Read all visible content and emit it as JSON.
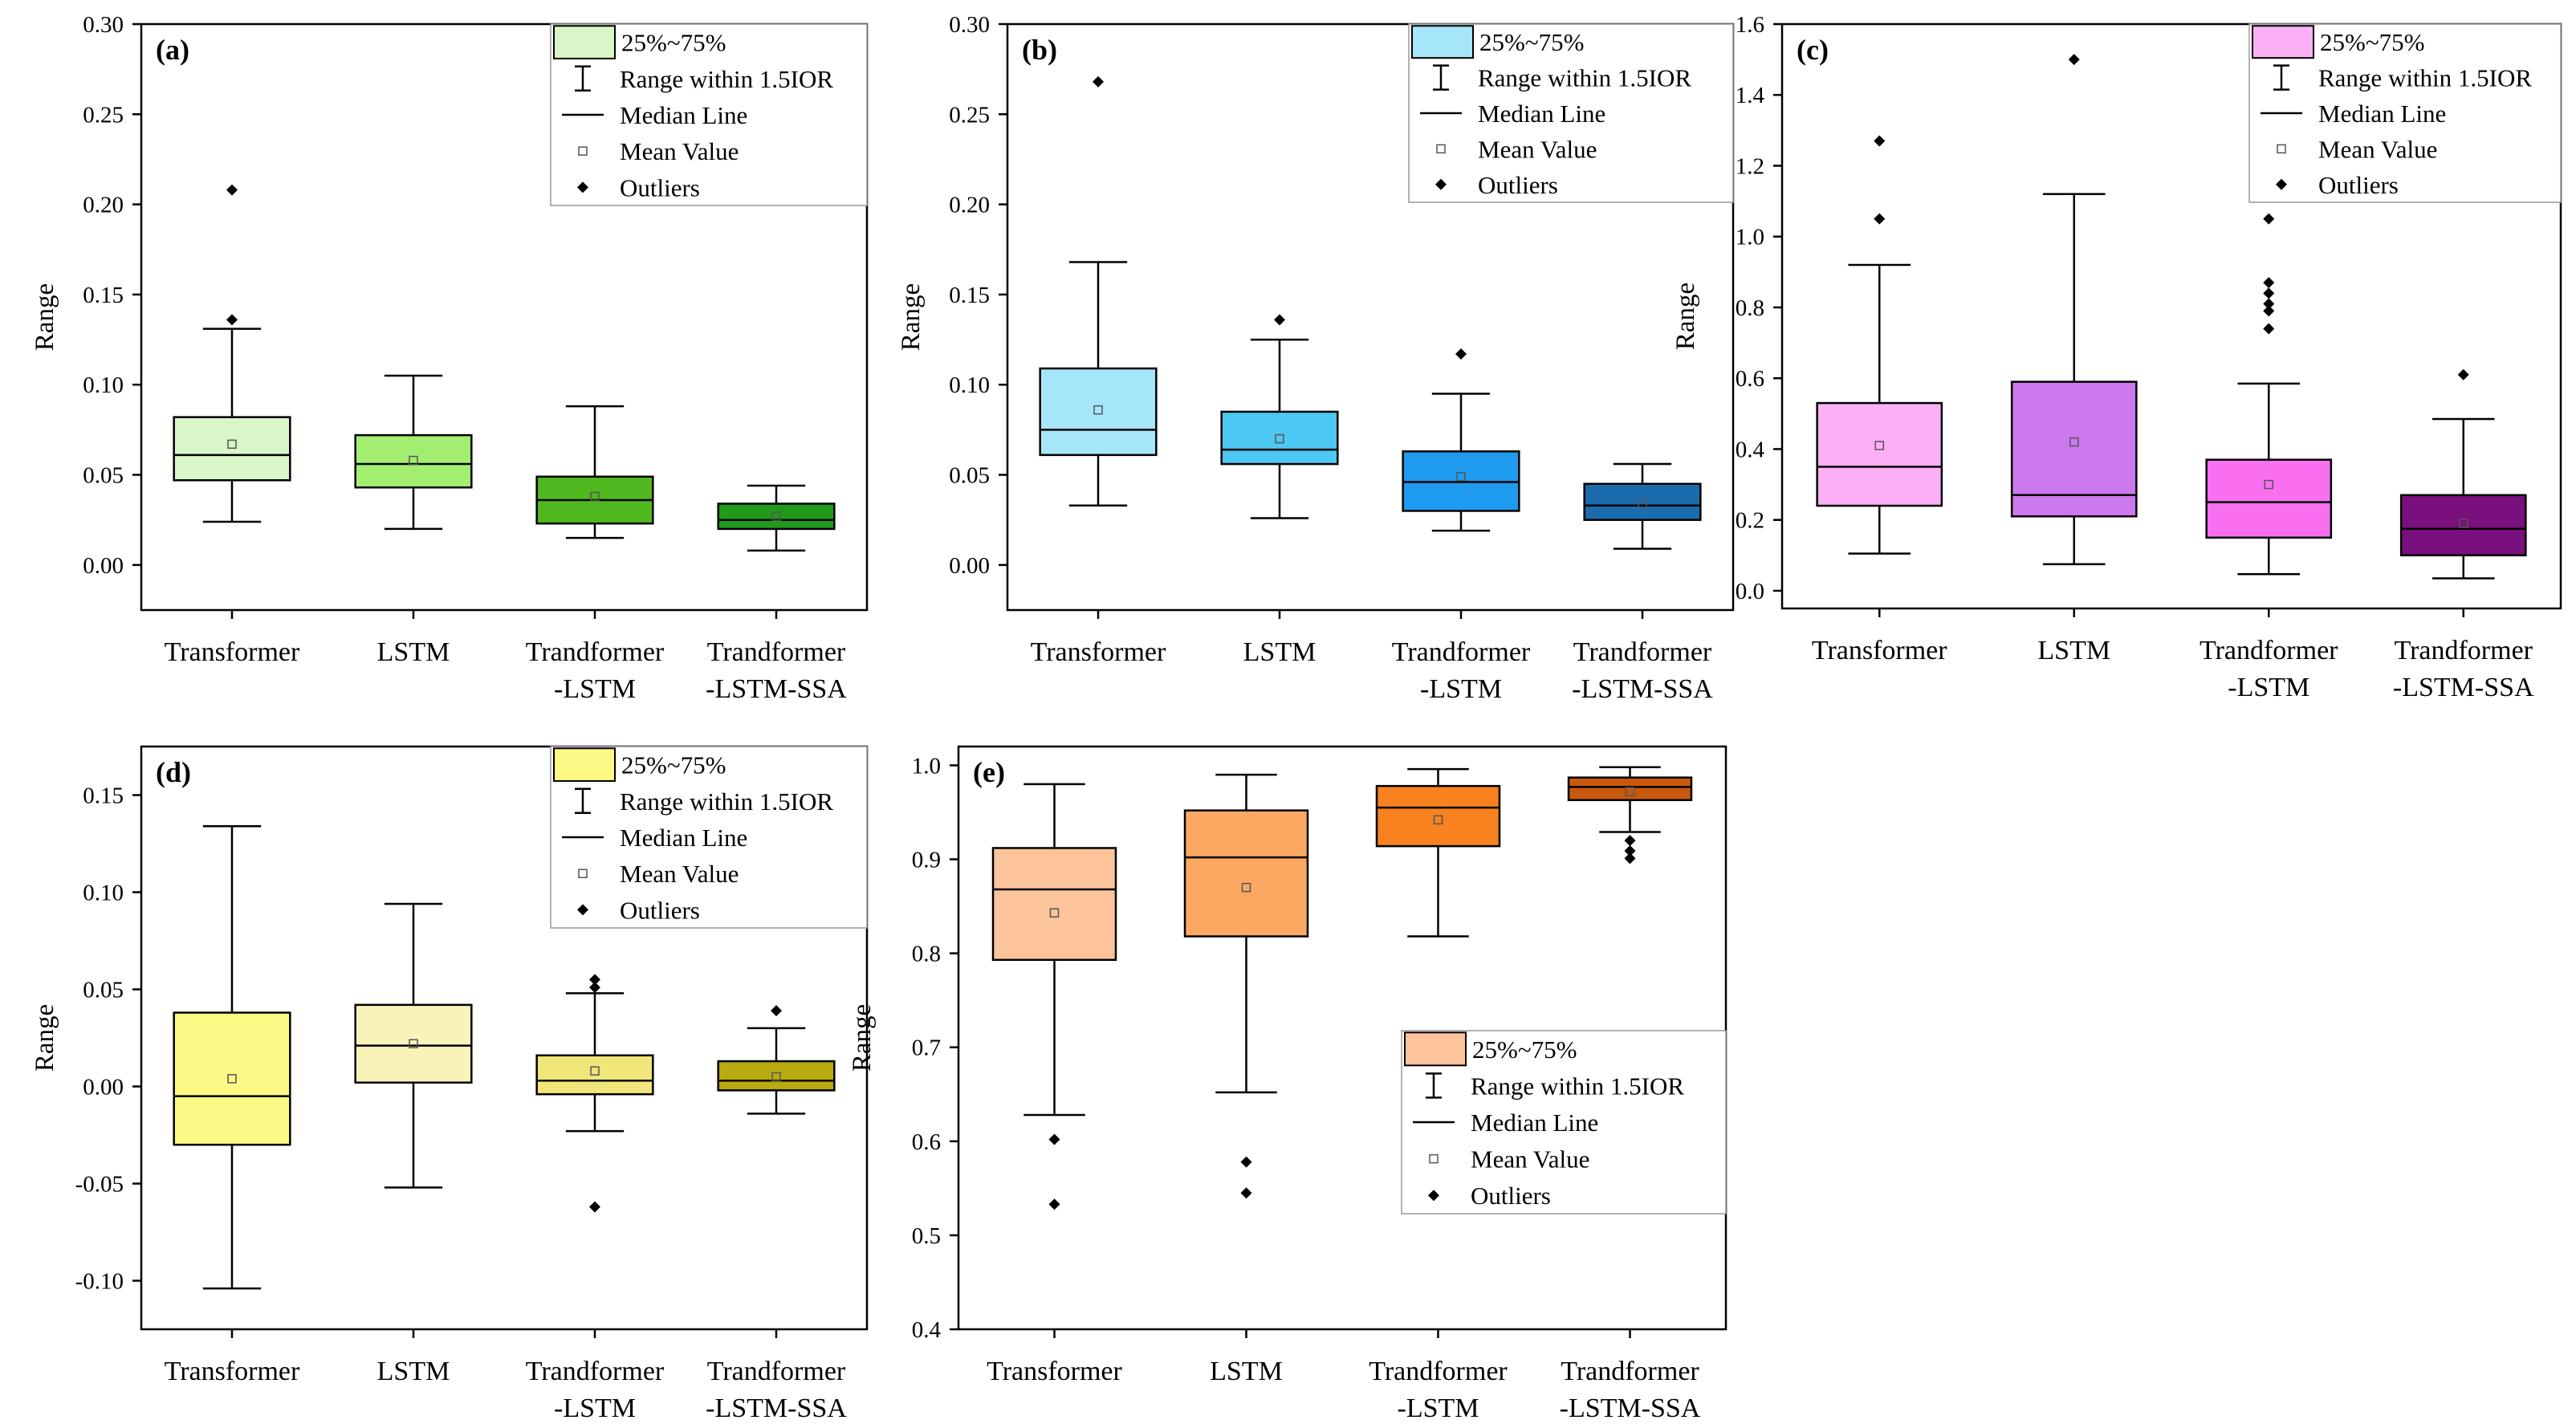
{
  "figure": {
    "type": "boxplot-grid",
    "legend_entries": [
      "25%~75%",
      "Range within 1.5IOR",
      "Median Line",
      "Mean Value",
      "Outliers"
    ],
    "categories": [
      "Transformer",
      "LSTM",
      "Trandformer\n-LSTM",
      "Trandformer\n-LSTM-SSA"
    ]
  },
  "chart_data": [
    {
      "type": "box",
      "title": "(a)",
      "ylabel": "Range",
      "ylim": [
        -0.025,
        0.3
      ],
      "yticks": [
        0.0,
        0.05,
        0.1,
        0.15,
        0.2,
        0.25,
        0.3
      ],
      "ytick_labels": [
        "0.00",
        "0.05",
        "0.10",
        "0.15",
        "0.20",
        "0.25",
        "0.30"
      ],
      "legend": [
        "25%~75%",
        "Range within 1.5IOR",
        "Median Line",
        "Mean Value",
        "Outliers"
      ],
      "legend_position": "top-right",
      "categories": [
        "Transformer",
        "LSTM",
        "Trandformer\n-LSTM",
        "Trandformer\n-LSTM-SSA"
      ],
      "boxes": [
        {
          "q1": 0.047,
          "median": 0.061,
          "q3": 0.082,
          "mean": 0.067,
          "whisker_low": 0.024,
          "whisker_high": 0.131,
          "outliers": [
            0.136,
            0.208
          ],
          "color": "#d9f6c8"
        },
        {
          "q1": 0.043,
          "median": 0.056,
          "q3": 0.072,
          "mean": 0.058,
          "whisker_low": 0.02,
          "whisker_high": 0.105,
          "outliers": [],
          "color": "#a3ee70"
        },
        {
          "q1": 0.023,
          "median": 0.036,
          "q3": 0.049,
          "mean": 0.038,
          "whisker_low": 0.015,
          "whisker_high": 0.088,
          "outliers": [],
          "color": "#4fb81e"
        },
        {
          "q1": 0.02,
          "median": 0.025,
          "q3": 0.034,
          "mean": 0.027,
          "whisker_low": 0.008,
          "whisker_high": 0.044,
          "outliers": [],
          "color": "#1f9a1a"
        }
      ]
    },
    {
      "type": "box",
      "title": "(b)",
      "ylabel": "Range",
      "ylim": [
        -0.025,
        0.3
      ],
      "yticks": [
        0.0,
        0.05,
        0.1,
        0.15,
        0.2,
        0.25,
        0.3
      ],
      "ytick_labels": [
        "0.00",
        "0.05",
        "0.10",
        "0.15",
        "0.20",
        "0.25",
        "0.30"
      ],
      "legend": [
        "25%~75%",
        "Range within 1.5IOR",
        "Median Line",
        "Mean Value",
        "Outliers"
      ],
      "legend_position": "top-right",
      "categories": [
        "Transformer",
        "LSTM",
        "Trandformer\n-LSTM",
        "Trandformer\n-LSTM-SSA"
      ],
      "boxes": [
        {
          "q1": 0.061,
          "median": 0.075,
          "q3": 0.109,
          "mean": 0.086,
          "whisker_low": 0.033,
          "whisker_high": 0.168,
          "outliers": [
            0.268
          ],
          "color": "#a6e6fb"
        },
        {
          "q1": 0.056,
          "median": 0.064,
          "q3": 0.085,
          "mean": 0.07,
          "whisker_low": 0.026,
          "whisker_high": 0.125,
          "outliers": [
            0.136
          ],
          "color": "#4cc8f2"
        },
        {
          "q1": 0.03,
          "median": 0.046,
          "q3": 0.063,
          "mean": 0.049,
          "whisker_low": 0.019,
          "whisker_high": 0.095,
          "outliers": [
            0.117
          ],
          "color": "#1e9bee"
        },
        {
          "q1": 0.025,
          "median": 0.033,
          "q3": 0.045,
          "mean": 0.034,
          "whisker_low": 0.009,
          "whisker_high": 0.056,
          "outliers": [],
          "color": "#1b6cad"
        }
      ]
    },
    {
      "type": "box",
      "title": "(c)",
      "ylabel": "Range",
      "ylim": [
        -0.05,
        1.6
      ],
      "yticks": [
        0.0,
        0.2,
        0.4,
        0.6,
        0.8,
        1.0,
        1.2,
        1.4,
        1.6
      ],
      "ytick_labels": [
        "0.0",
        "0.2",
        "0.4",
        "0.6",
        "0.8",
        "1.0",
        "1.2",
        "1.4",
        "1.6"
      ],
      "legend": [
        "25%~75%",
        "Range within 1.5IOR",
        "Median Line",
        "Mean Value",
        "Outliers"
      ],
      "legend_position": "top-right",
      "categories": [
        "Transformer",
        "LSTM",
        "Trandformer\n-LSTM",
        "Trandformer\n-LSTM-SSA"
      ],
      "boxes": [
        {
          "q1": 0.24,
          "median": 0.35,
          "q3": 0.53,
          "mean": 0.41,
          "whisker_low": 0.105,
          "whisker_high": 0.92,
          "outliers": [
            1.05,
            1.27
          ],
          "color": "#fbb0f6"
        },
        {
          "q1": 0.21,
          "median": 0.27,
          "q3": 0.59,
          "mean": 0.42,
          "whisker_low": 0.075,
          "whisker_high": 1.12,
          "outliers": [
            1.5
          ],
          "color": "#cc78ee"
        },
        {
          "q1": 0.15,
          "median": 0.25,
          "q3": 0.37,
          "mean": 0.3,
          "whisker_low": 0.047,
          "whisker_high": 0.585,
          "outliers": [
            0.74,
            0.79,
            0.81,
            0.84,
            0.87,
            1.05
          ],
          "color": "#f870f0"
        },
        {
          "q1": 0.1,
          "median": 0.175,
          "q3": 0.27,
          "mean": 0.19,
          "whisker_low": 0.035,
          "whisker_high": 0.485,
          "outliers": [
            0.61
          ],
          "color": "#7a0f7e"
        }
      ]
    },
    {
      "type": "box",
      "title": "(d)",
      "ylabel": "Range",
      "ylim": [
        -0.125,
        0.175
      ],
      "yticks": [
        -0.1,
        -0.05,
        0.0,
        0.05,
        0.1,
        0.15
      ],
      "ytick_labels": [
        "-0.10",
        "-0.05",
        "0.00",
        "0.05",
        "0.10",
        "0.15"
      ],
      "legend": [
        "25%~75%",
        "Range within 1.5IOR",
        "Median Line",
        "Mean Value",
        "Outliers"
      ],
      "legend_position": "top-right",
      "categories": [
        "Transformer",
        "LSTM",
        "Trandformer\n-LSTM",
        "Trandformer\n-LSTM-SSA"
      ],
      "boxes": [
        {
          "q1": -0.03,
          "median": -0.005,
          "q3": 0.038,
          "mean": 0.004,
          "whisker_low": -0.104,
          "whisker_high": 0.134,
          "outliers": [],
          "color": "#fcfa85"
        },
        {
          "q1": 0.002,
          "median": 0.021,
          "q3": 0.042,
          "mean": 0.022,
          "whisker_low": -0.052,
          "whisker_high": 0.094,
          "outliers": [],
          "color": "#f8f3b8"
        },
        {
          "q1": -0.004,
          "median": 0.003,
          "q3": 0.016,
          "mean": 0.008,
          "whisker_low": -0.023,
          "whisker_high": 0.048,
          "outliers": [
            -0.062,
            0.051,
            0.055
          ],
          "color": "#f0e67a"
        },
        {
          "q1": -0.002,
          "median": 0.003,
          "q3": 0.013,
          "mean": 0.005,
          "whisker_low": -0.014,
          "whisker_high": 0.03,
          "outliers": [
            0.039
          ],
          "color": "#b8aa10"
        }
      ]
    },
    {
      "type": "box",
      "title": "(e)",
      "ylabel": "Range",
      "ylim": [
        0.4,
        1.02
      ],
      "yticks": [
        0.4,
        0.5,
        0.6,
        0.7,
        0.8,
        0.9,
        1.0
      ],
      "ytick_labels": [
        "0.4",
        "0.5",
        "0.6",
        "0.7",
        "0.8",
        "0.9",
        "1.0"
      ],
      "legend": [
        "25%~75%",
        "Range within 1.5IOR",
        "Median Line",
        "Mean Value",
        "Outliers"
      ],
      "legend_position": "lower-right",
      "categories": [
        "Transformer",
        "LSTM",
        "Trandformer\n-LSTM",
        "Trandformer\n-LSTM-SSA"
      ],
      "boxes": [
        {
          "q1": 0.793,
          "median": 0.868,
          "q3": 0.912,
          "mean": 0.843,
          "whisker_low": 0.628,
          "whisker_high": 0.98,
          "outliers": [
            0.533,
            0.602
          ],
          "color": "#fcc49b"
        },
        {
          "q1": 0.818,
          "median": 0.902,
          "q3": 0.952,
          "mean": 0.87,
          "whisker_low": 0.652,
          "whisker_high": 0.99,
          "outliers": [
            0.545,
            0.578
          ],
          "color": "#fba862"
        },
        {
          "q1": 0.914,
          "median": 0.955,
          "q3": 0.978,
          "mean": 0.942,
          "whisker_low": 0.818,
          "whisker_high": 0.996,
          "outliers": [],
          "color": "#f8821f"
        },
        {
          "q1": 0.963,
          "median": 0.977,
          "q3": 0.987,
          "mean": 0.972,
          "whisker_low": 0.929,
          "whisker_high": 0.998,
          "outliers": [
            0.901,
            0.909,
            0.92
          ],
          "color": "#c8580e"
        }
      ]
    }
  ]
}
